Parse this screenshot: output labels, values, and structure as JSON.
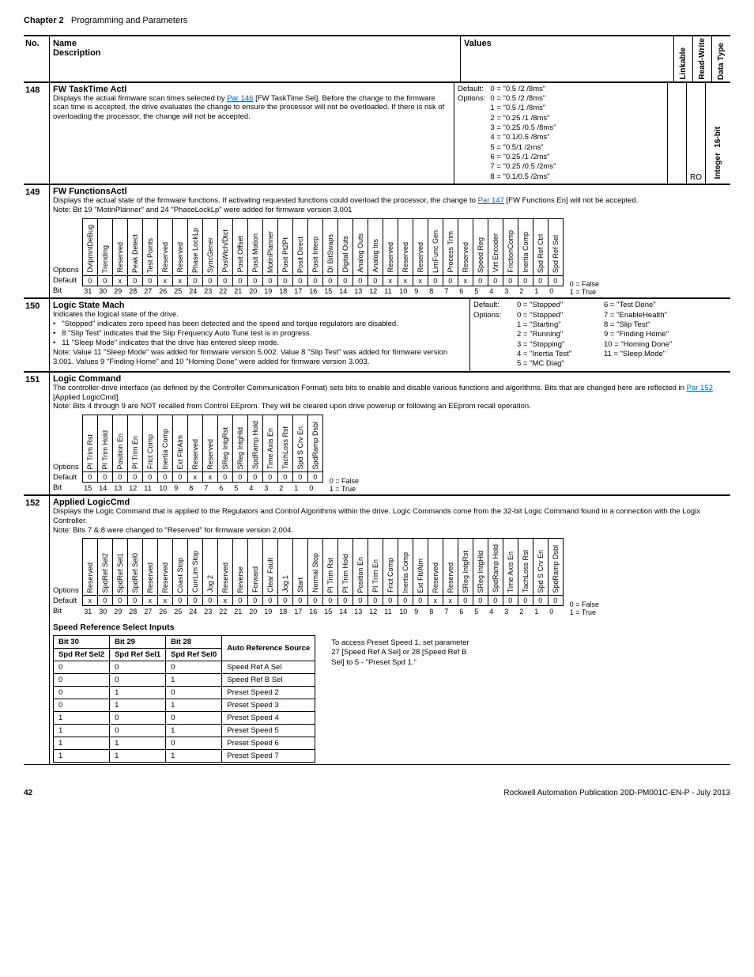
{
  "chapter": {
    "label": "Chapter 2",
    "title": "Programming and Parameters"
  },
  "header": {
    "no": "No.",
    "name": "Name",
    "desc": "Description",
    "values": "Values",
    "linkable": "Linkable",
    "readwrite": "Read-Write",
    "datatype": "Data Type"
  },
  "p148": {
    "no": "148",
    "name": "FW TaskTime Actl",
    "desc1": "Displays the actual firmware scan times selected by ",
    "link": "Par 146",
    "desc2": " [FW TaskTime Sel]. Before the change to the firmware scan time is accepted, the drive evaluates the change to ensure the processor will not be overloaded. If there is risk of overloading the processor, the change will not be accepted.",
    "def": "Default:",
    "opt": "Options:",
    "rw": "RO",
    "dt1": "16-bit",
    "dt2": "Integer",
    "vals": [
      "0 =    \"0.5 /2 /8ms\"",
      "0 =    \"0.5 /2 /8ms\"",
      "1 =    \"0.5 /1 /8ms\"",
      "2 =    \"0.25 /1 /8ms\"",
      "3 =    \"0.25 /0.5 /8ms\"",
      "4 =    \"0.1/0.5 /8ms\"",
      "5 =    \"0.5/1 /2ms\"",
      "6 =    \"0.25 /1 /2ms\"",
      "7 =    \"0.25 /0.5 /2ms\"",
      "8 =    \"0.1/0.5 /2ms\""
    ]
  },
  "p149": {
    "no": "149",
    "name": "FW FunctionsActl",
    "desc": "Displays the actual state of the firmware functions. If activating requested functions could overload the processor, the change to ",
    "link": "Par 147",
    "desc2": " [FW Functions En] will not be accepted.",
    "note": "Note: Bit 19 \"MotinPlanner\" and 24 \"PhaseLockLp\" were added for firmware version 3.001",
    "options": "Options",
    "default": "Default",
    "bit": "Bit",
    "heads": [
      "DvlpmntDeBug",
      "Trending",
      "Reserved",
      "Peak Detect",
      "Test Points",
      "Reserved",
      "Reserved",
      "Phase LockLp",
      "SyncGener",
      "PosWtch/Dtct",
      "Posit Offset",
      "Posit Motion",
      "MotinPlanner",
      "Posit Pt2Pt",
      "Posit Direct",
      "Posit Interp",
      "DI BitSwaps",
      "Digital Outs",
      "Analog Outs",
      "Analog Ins",
      "Reserved",
      "Reserved",
      "Reserved",
      "LimFunc Gen",
      "Process Trim",
      "Reserved",
      "Speed Reg",
      "Virt Encoder",
      "FrictionComp",
      "Inertia Comp",
      "Spd Ref Ctrl",
      "Spd Ref Sel"
    ],
    "defvals": [
      "0",
      "0",
      "x",
      "0",
      "0",
      "x",
      "x",
      "0",
      "0",
      "0",
      "0",
      "0",
      "0",
      "0",
      "0",
      "0",
      "0",
      "0",
      "0",
      "0",
      "x",
      "x",
      "x",
      "0",
      "0",
      "x",
      "0",
      "0",
      "0",
      "0",
      "0",
      "0"
    ],
    "bitnums": [
      "31",
      "30",
      "29",
      "28",
      "27",
      "26",
      "25",
      "24",
      "23",
      "22",
      "21",
      "20",
      "19",
      "18",
      "17",
      "16",
      "15",
      "14",
      "13",
      "12",
      "11",
      "10",
      "9",
      "8",
      "7",
      "6",
      "5",
      "4",
      "3",
      "2",
      "1",
      "0"
    ],
    "legend0": "0 = False",
    "legend1": "1 = True"
  },
  "p150": {
    "no": "150",
    "name": "Logic State Mach",
    "desc1": "Indicates the logical state of the drive.",
    "b1": "\"Stopped\" indicates zero speed has been detected and the speed and torque regulators are disabled.",
    "b2": "8 \"Slip Test\" indicates that the Slip Frequency Auto Tune test is in progress.",
    "b3": "11 \"Sleep Mode\" indicates that the drive has entered sleep mode.",
    "note": "Note: Value 11 \"Sleep Mode\" was added for firmware version 5.002. Value 8 \"Slip Test\" was added for firmware version 3.001. Values 9 \"Finding Home\" and 10 \"Homing Done\" were added for firmware version 3.003.",
    "def": "Default:",
    "opt": "Options:",
    "lvals": [
      "0 =   \"Stopped\"",
      "0 =   \"Stopped\"",
      "1 =   \"Starting\"",
      "2 =   \"Running\"",
      "3 =   \"Stopping\"",
      "4 =   \"Inertia Test\"",
      "5 =   \"MC Diag\""
    ],
    "rvals": [
      "6 =   \"Test Done\"",
      "7 =   \"EnableHealth\"",
      "8 =   \"Slip Test\"",
      "9 =   \"Finding Home\"",
      "10 = \"Homing Done\"",
      "11 = \"Sleep Mode\""
    ]
  },
  "p151": {
    "no": "151",
    "name": "Logic Command",
    "desc1": "The controller-drive interface (as defined by the Controller Communication Format) sets bits to enable and disable various functions and algorithms. Bits that are changed here are reflected in ",
    "link1": "Par 152",
    "desc2": " [Applied LogicCmd].",
    "note": "Note: Bits 4 through 9 are NOT recalled from Control EEprom.  They will be cleared upon drive powerup or following an EEprom recall operation.",
    "options": "Options",
    "default": "Default",
    "bit": "Bit",
    "heads": [
      "PI Trim Rst",
      "PI Trim Hold",
      "Position En",
      "PI Trim En",
      "Frict Comp",
      "Inertia Comp",
      "Ext Flt/Alm",
      "Reserved",
      "Reserved",
      "SReg IntgRst",
      "SReg IntgHld",
      "SpdRamp Hold",
      "Time Axis En",
      "TachLoss Rst",
      "Spd S Crv En",
      "SpdRamp Dsbl"
    ],
    "defvals": [
      "0",
      "0",
      "0",
      "0",
      "0",
      "0",
      "0",
      "x",
      "x",
      "0",
      "0",
      "0",
      "0",
      "0",
      "0",
      "0"
    ],
    "bitnums": [
      "15",
      "14",
      "13",
      "12",
      "11",
      "10",
      "9",
      "8",
      "7",
      "6",
      "5",
      "4",
      "3",
      "2",
      "1",
      "0"
    ],
    "legend0": "0 = False",
    "legend1": "1 = True"
  },
  "p152": {
    "no": "152",
    "name": "Applied LogicCmd",
    "desc": "Displays the Logic Command that is applied to the Regulators and Control Algorithms within the drive. Logic Commands come from the 32-bit Logic Command found in a connection with the Logix Controller.",
    "note": "Note: Bits 7 & 8 were changed to \"Reserved\" for firmware version 2.004.",
    "options": "Options",
    "default": "Default",
    "bit": "Bit",
    "heads": [
      "Reserved",
      "SpdRef Sel2",
      "SpdRef Sel1",
      "SpdRef Sel0",
      "Reserved",
      "Reserved",
      "Coast Stop",
      "CurrLim Stop",
      "Jog 2",
      "Reserved",
      "Reverse",
      "Forward",
      "Clear Fault",
      "Jog 1",
      "Start",
      "Normal Stop",
      "PI Trim Rst",
      "PI Trim Hold",
      "Position En",
      "PI Trim En",
      "Frict Comp",
      "Inertia Comp",
      "Ext Flt/Alm",
      "Reserved",
      "Reserved",
      "SReg IntgRst",
      "SReg IntgHld",
      "SpdRamp Hold",
      "Time Axis En",
      "TachLoss Rst",
      "Spd S Crv En",
      "SpdRamp Dsbl"
    ],
    "defvals": [
      "x",
      "0",
      "0",
      "0",
      "x",
      "x",
      "0",
      "0",
      "0",
      "x",
      "0",
      "0",
      "0",
      "0",
      "0",
      "0",
      "0",
      "0",
      "0",
      "0",
      "0",
      "0",
      "0",
      "x",
      "x",
      "0",
      "0",
      "0",
      "0",
      "0",
      "0",
      "0"
    ],
    "bitnums": [
      "31",
      "30",
      "29",
      "28",
      "27",
      "26",
      "25",
      "24",
      "23",
      "22",
      "21",
      "20",
      "19",
      "18",
      "17",
      "16",
      "15",
      "14",
      "13",
      "12",
      "11",
      "10",
      "9",
      "8",
      "7",
      "6",
      "5",
      "4",
      "3",
      "2",
      "1",
      "0"
    ],
    "legend0": "0 = False",
    "legend1": "1 = True",
    "srs_title": "Speed Reference Select Inputs",
    "srs_h": [
      "Bit 30",
      "Bit 29",
      "Bit 28",
      "Auto Reference Source"
    ],
    "srs_h2": [
      "Spd Ref Sel2",
      "Spd Ref Sel1",
      "Spd Ref Sel0",
      ""
    ],
    "srs_rows": [
      [
        "0",
        "0",
        "0",
        "Speed Ref A Sel"
      ],
      [
        "0",
        "0",
        "1",
        "Speed Ref B Sel"
      ],
      [
        "0",
        "1",
        "0",
        "Preset Speed 2"
      ],
      [
        "0",
        "1",
        "1",
        "Preset Speed 3"
      ],
      [
        "1",
        "0",
        "0",
        "Preset Speed 4"
      ],
      [
        "1",
        "0",
        "1",
        "Preset Speed 5"
      ],
      [
        "1",
        "1",
        "0",
        "Preset Speed 6"
      ],
      [
        "1",
        "1",
        "1",
        "Preset Speed 7"
      ]
    ],
    "srs_note": "To access Preset Speed 1, set parameter 27 [Speed Ref A Sel] or 28 [Speed Ref B Sel] to 5 - \"Preset Spd 1.\""
  },
  "footer": {
    "page": "42",
    "pub": "Rockwell Automation Publication 20D-PM001C-EN-P - July 2013"
  }
}
